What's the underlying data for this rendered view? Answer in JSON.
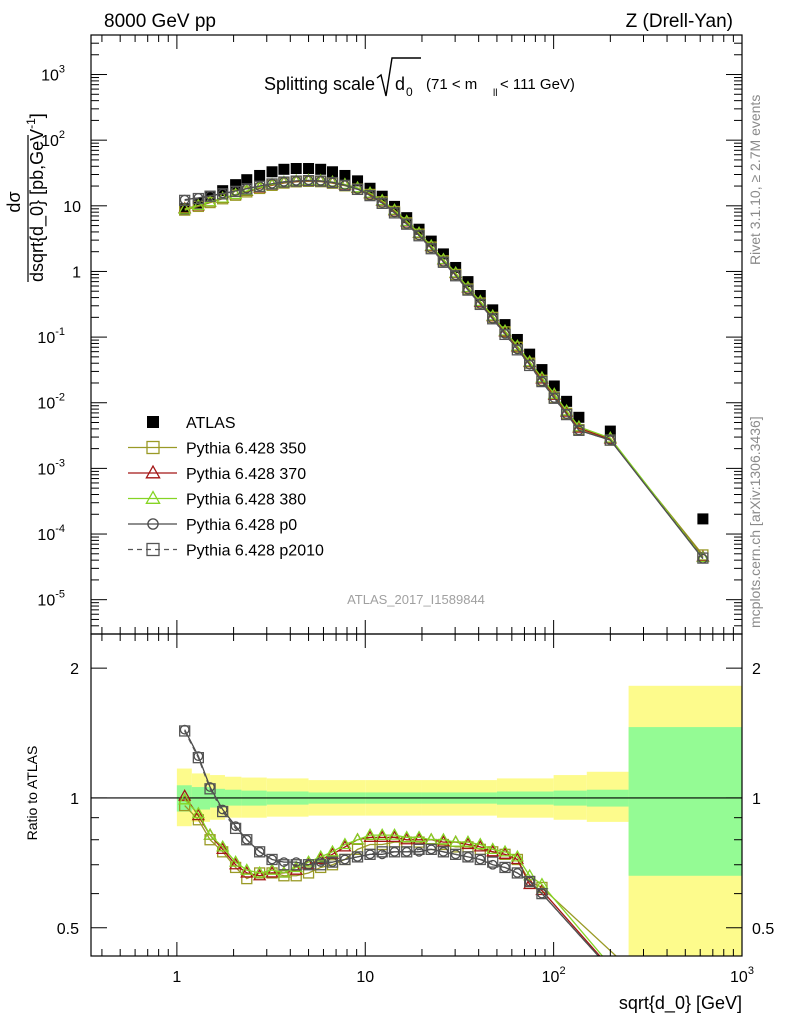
{
  "header": {
    "left": "8000 GeV pp",
    "right": "Z (Drell-Yan)"
  },
  "plot_title": {
    "main": "Splitting scale",
    "symbol": "d",
    "symbol_sub": "0",
    "cut": "(71 < m",
    "cut_sub": "ll",
    "cut_tail": " < 111 GeV)"
  },
  "side_labels": {
    "rivet": "Rivet 3.1.10, ≥ 2.7M events",
    "mcplots": "mcplots.cern.ch [arXiv:1306.3436]"
  },
  "watermark": "ATLAS_2017_I1589844",
  "chart_data": [
    {
      "type": "scatter",
      "panel": "main",
      "xscale": "log",
      "yscale": "log",
      "xlim": [
        0.35,
        1000
      ],
      "ylim": [
        3e-06,
        4000
      ],
      "ylabel": "dσ/dsqrt{d_0} [pb,GeV⁻¹]",
      "ylabel_num": "dσ",
      "ylabel_den": "dsqrt{d_0} [pb,GeV",
      "ylabel_sup": "-1",
      "ylabel_tail": "]",
      "yticks": [
        {
          "v": 1e-05,
          "base": "10",
          "exp": "-5"
        },
        {
          "v": 0.0001,
          "base": "10",
          "exp": "-4"
        },
        {
          "v": 0.001,
          "base": "10",
          "exp": "-3"
        },
        {
          "v": 0.01,
          "base": "10",
          "exp": "-2"
        },
        {
          "v": 0.1,
          "base": "10",
          "exp": "-1"
        },
        {
          "v": 1,
          "base": "1",
          "exp": ""
        },
        {
          "v": 10,
          "base": "10",
          "exp": ""
        },
        {
          "v": 100,
          "base": "10",
          "exp": "2"
        },
        {
          "v": 1000,
          "base": "10",
          "exp": "3"
        }
      ],
      "legend_position": "lower-left",
      "series": [
        {
          "name": "ATLAS",
          "color": "#000000",
          "marker": "filled-square",
          "line": "none",
          "x": [
            1.1,
            1.3,
            1.5,
            1.75,
            2.05,
            2.35,
            2.75,
            3.2,
            3.7,
            4.3,
            5.0,
            5.8,
            6.7,
            7.8,
            9.1,
            10.6,
            12.3,
            14.3,
            16.6,
            19.3,
            22.4,
            26.0,
            30.2,
            35.1,
            40.8,
            47.5,
            55.2,
            64.2,
            74.6,
            86.7,
            100.8,
            117.2,
            136.2,
            200,
            620
          ],
          "y": [
            9,
            11,
            14,
            17,
            21,
            25,
            29,
            33,
            36,
            37,
            37,
            36,
            33,
            29,
            24,
            18.5,
            14,
            9.8,
            6.6,
            4.4,
            2.9,
            1.85,
            1.15,
            0.7,
            0.43,
            0.26,
            0.155,
            0.092,
            0.055,
            0.032,
            0.018,
            0.0105,
            0.006,
            0.0037,
            0.00017
          ]
        },
        {
          "name": "Pythia 6.428 350",
          "color": "#9a9a26",
          "marker": "open-square",
          "line": "solid",
          "x": [
            1.1,
            1.3,
            1.5,
            1.75,
            2.05,
            2.35,
            2.75,
            3.2,
            3.7,
            4.3,
            5.0,
            5.8,
            6.7,
            7.8,
            9.1,
            10.6,
            12.3,
            14.3,
            16.6,
            19.3,
            22.4,
            26.0,
            30.2,
            35.1,
            40.8,
            47.5,
            55.2,
            64.2,
            74.6,
            86.7,
            100.8,
            117.2,
            136.2,
            200,
            620
          ],
          "y": [
            8.6,
            9.8,
            11.2,
            12.8,
            14.5,
            16.3,
            18.4,
            20.5,
            22.2,
            23.2,
            23.6,
            23.3,
            22.1,
            20.2,
            18,
            14.9,
            11.5,
            8.2,
            5.5,
            3.7,
            2.35,
            1.45,
            0.9,
            0.54,
            0.33,
            0.2,
            0.12,
            0.07,
            0.04,
            0.022,
            0.012,
            0.0069,
            0.0039,
            0.0027,
            4.8e-05
          ]
        },
        {
          "name": "Pythia 6.428 370",
          "color": "#a31616",
          "marker": "open-triangle",
          "line": "solid",
          "x": [
            1.1,
            1.3,
            1.5,
            1.75,
            2.05,
            2.35,
            2.75,
            3.2,
            3.7,
            4.3,
            5.0,
            5.8,
            6.7,
            7.8,
            9.1,
            10.6,
            12.3,
            14.3,
            16.6,
            19.3,
            22.4,
            26.0,
            30.2,
            35.1,
            40.8,
            47.5,
            55.2,
            64.2,
            74.6,
            86.7,
            100.8,
            117.2,
            136.2,
            200,
            620
          ],
          "y": [
            9.1,
            10,
            11.4,
            13,
            14.8,
            16.6,
            18.7,
            20.8,
            22.6,
            23.5,
            24,
            23.7,
            22.6,
            20.8,
            18.5,
            15.3,
            11.8,
            8.4,
            5.7,
            3.8,
            2.4,
            1.5,
            0.93,
            0.56,
            0.34,
            0.205,
            0.12,
            0.071,
            0.041,
            0.023,
            0.013,
            0.0072,
            0.0041,
            0.0028,
            4.5e-05
          ]
        },
        {
          "name": "Pythia 6.428 380",
          "color": "#86d424",
          "marker": "open-triangle",
          "line": "solid",
          "x": [
            1.1,
            1.3,
            1.5,
            1.75,
            2.05,
            2.35,
            2.75,
            3.2,
            3.7,
            4.3,
            5.0,
            5.8,
            6.7,
            7.8,
            9.1,
            10.6,
            12.3,
            14.3,
            16.6,
            19.3,
            22.4,
            26.0,
            30.2,
            35.1,
            40.8,
            47.5,
            55.2,
            64.2,
            74.6,
            86.7,
            100.8,
            117.2,
            136.2,
            200,
            620
          ],
          "y": [
            8.9,
            10.1,
            11.5,
            13.1,
            14.9,
            16.8,
            19,
            21.1,
            22.9,
            23.9,
            24.4,
            24.1,
            23,
            21.2,
            18.8,
            15.6,
            12,
            8.6,
            5.8,
            3.85,
            2.45,
            1.52,
            0.95,
            0.57,
            0.35,
            0.21,
            0.124,
            0.073,
            0.042,
            0.024,
            0.0135,
            0.0075,
            0.0043,
            0.0029,
            4.4e-05
          ]
        },
        {
          "name": "Pythia 6.428 p0",
          "color": "#4a4a4a",
          "marker": "open-circle",
          "line": "solid",
          "x": [
            1.1,
            1.3,
            1.5,
            1.75,
            2.05,
            2.35,
            2.75,
            3.2,
            3.7,
            4.3,
            5.0,
            5.8,
            6.7,
            7.8,
            9.1,
            10.6,
            12.3,
            14.3,
            16.6,
            19.3,
            22.4,
            26.0,
            30.2,
            35.1,
            40.8,
            47.5,
            55.2,
            64.2,
            74.6,
            86.7,
            100.8,
            117.2,
            136.2,
            200,
            620
          ],
          "y": [
            12.4,
            13.2,
            14.2,
            15.4,
            16.8,
            18.3,
            20,
            21.7,
            23.2,
            24,
            24.4,
            24,
            22.8,
            20.7,
            18,
            14.4,
            11,
            7.9,
            5.3,
            3.55,
            2.25,
            1.4,
            0.87,
            0.53,
            0.32,
            0.19,
            0.112,
            0.065,
            0.038,
            0.021,
            0.0118,
            0.0067,
            0.0038,
            0.0027,
            4.2e-05
          ]
        },
        {
          "name": "Pythia 6.428 p2010",
          "color": "#555555",
          "marker": "open-square",
          "line": "dashed",
          "x": [
            1.1,
            1.3,
            1.5,
            1.75,
            2.05,
            2.35,
            2.75,
            3.2,
            3.7,
            4.3,
            5.0,
            5.8,
            6.7,
            7.8,
            9.1,
            10.6,
            12.3,
            14.3,
            16.6,
            19.3,
            22.4,
            26.0,
            30.2,
            35.1,
            40.8,
            47.5,
            55.2,
            64.2,
            74.6,
            86.7,
            100.8,
            117.2,
            136.2,
            200,
            620
          ],
          "y": [
            12.1,
            12.9,
            14,
            15.2,
            16.6,
            18.1,
            19.8,
            21.5,
            23,
            23.8,
            24.2,
            23.8,
            22.6,
            20.5,
            17.8,
            14.3,
            10.9,
            7.8,
            5.25,
            3.5,
            2.22,
            1.38,
            0.86,
            0.52,
            0.315,
            0.19,
            0.11,
            0.064,
            0.037,
            0.021,
            0.0117,
            0.0066,
            0.0038,
            0.0027,
            4.3e-05
          ]
        }
      ]
    },
    {
      "type": "line",
      "panel": "ratio",
      "xscale": "log",
      "yscale": "log",
      "xlim": [
        0.35,
        1000
      ],
      "ylim": [
        0.43,
        2.4
      ],
      "xlabel": "sqrt{d_0} [GeV]",
      "ylabel": "Ratio to ATLAS",
      "xticks": [
        {
          "v": 1,
          "base": "1",
          "exp": ""
        },
        {
          "v": 10,
          "base": "10",
          "exp": ""
        },
        {
          "v": 100,
          "base": "10",
          "exp": "2"
        },
        {
          "v": 1000,
          "base": "10",
          "exp": "3"
        }
      ],
      "yticks": [
        {
          "v": 0.5,
          "label": "0.5"
        },
        {
          "v": 1,
          "label": "1"
        },
        {
          "v": 2,
          "label": "2"
        }
      ],
      "band_inner": {
        "color": "#94fb94",
        "edges": [
          1,
          1.2,
          1.5,
          1.8,
          2.2,
          3,
          5,
          10,
          20,
          50,
          100,
          150,
          250,
          1000
        ],
        "lo": [
          0.93,
          0.94,
          0.95,
          0.96,
          0.96,
          0.965,
          0.97,
          0.97,
          0.97,
          0.965,
          0.96,
          0.955,
          0.66
        ],
        "hi": [
          1.07,
          1.06,
          1.05,
          1.045,
          1.04,
          1.035,
          1.03,
          1.03,
          1.03,
          1.035,
          1.04,
          1.045,
          1.46
        ]
      },
      "band_outer": {
        "color": "#fdfb8c",
        "edges": [
          1,
          1.2,
          1.5,
          1.8,
          2.2,
          3,
          5,
          10,
          20,
          50,
          100,
          150,
          250,
          1000
        ],
        "lo": [
          0.86,
          0.88,
          0.89,
          0.9,
          0.9,
          0.905,
          0.91,
          0.91,
          0.91,
          0.9,
          0.89,
          0.88,
          0.1
        ],
        "hi": [
          1.17,
          1.14,
          1.13,
          1.12,
          1.115,
          1.11,
          1.1,
          1.1,
          1.1,
          1.11,
          1.13,
          1.15,
          1.82
        ]
      },
      "series": [
        {
          "name": "Pythia 6.428 350",
          "color": "#9a9a26",
          "marker": "open-square",
          "line": "solid",
          "x": [
            1.1,
            1.3,
            1.5,
            1.75,
            2.05,
            2.35,
            2.75,
            3.2,
            3.7,
            4.3,
            5.0,
            5.8,
            6.7,
            7.8,
            9.1,
            10.6,
            12.3,
            14.3,
            16.6,
            19.3,
            22.4,
            26.0,
            30.2,
            35.1,
            40.8,
            47.5,
            55.2,
            64.2,
            74.6,
            86.7,
            620
          ],
          "y": [
            0.96,
            0.89,
            0.8,
            0.75,
            0.69,
            0.65,
            0.67,
            0.67,
            0.66,
            0.66,
            0.67,
            0.69,
            0.7,
            0.72,
            0.76,
            0.78,
            0.78,
            0.79,
            0.79,
            0.79,
            0.78,
            0.78,
            0.77,
            0.77,
            0.76,
            0.75,
            0.74,
            0.72,
            0.64,
            0.62,
            0.28
          ]
        },
        {
          "name": "Pythia 6.428 370",
          "color": "#a31616",
          "marker": "open-triangle",
          "line": "solid",
          "x": [
            1.1,
            1.3,
            1.5,
            1.75,
            2.05,
            2.35,
            2.75,
            3.2,
            3.7,
            4.3,
            5.0,
            5.8,
            6.7,
            7.8,
            9.1,
            10.6,
            12.3,
            14.3,
            16.6,
            19.3,
            22.4,
            26.0,
            30.2,
            35.1,
            40.8,
            47.5,
            55.2,
            64.2,
            74.6,
            86.7
          ],
          "y": [
            1.01,
            0.91,
            0.82,
            0.76,
            0.7,
            0.67,
            0.66,
            0.67,
            0.67,
            0.68,
            0.7,
            0.72,
            0.74,
            0.77,
            0.8,
            0.81,
            0.81,
            0.81,
            0.8,
            0.8,
            0.8,
            0.79,
            0.79,
            0.78,
            0.77,
            0.75,
            0.74,
            0.72,
            0.63,
            0.61
          ]
        },
        {
          "name": "Pythia 6.428 380",
          "color": "#86d424",
          "marker": "open-triangle",
          "line": "solid",
          "x": [
            1.1,
            1.3,
            1.5,
            1.75,
            2.05,
            2.35,
            2.75,
            3.2,
            3.7,
            4.3,
            5.0,
            5.8,
            6.7,
            7.8,
            9.1,
            10.6,
            12.3,
            14.3,
            16.6,
            19.3,
            22.4,
            26.0,
            30.2,
            35.1,
            40.8,
            47.5,
            55.2,
            64.2,
            74.6,
            86.7
          ],
          "y": [
            0.99,
            0.92,
            0.82,
            0.77,
            0.71,
            0.68,
            0.67,
            0.68,
            0.67,
            0.69,
            0.71,
            0.73,
            0.75,
            0.78,
            0.8,
            0.82,
            0.82,
            0.82,
            0.81,
            0.81,
            0.8,
            0.8,
            0.79,
            0.79,
            0.78,
            0.76,
            0.75,
            0.73,
            0.66,
            0.63
          ]
        },
        {
          "name": "Pythia 6.428 p0",
          "color": "#4a4a4a",
          "marker": "open-circle",
          "line": "solid",
          "x": [
            1.1,
            1.3,
            1.5,
            1.75,
            2.05,
            2.35,
            2.75,
            3.2,
            3.7,
            4.3,
            5.0,
            5.8,
            6.7,
            7.8,
            9.1,
            10.6,
            12.3,
            14.3,
            16.6,
            19.3,
            22.4,
            26.0,
            30.2,
            35.1,
            40.8,
            47.5,
            55.2,
            64.2,
            74.6,
            86.7
          ],
          "y": [
            1.44,
            1.25,
            1.06,
            0.94,
            0.86,
            0.8,
            0.75,
            0.72,
            0.71,
            0.71,
            0.7,
            0.71,
            0.71,
            0.72,
            0.73,
            0.74,
            0.74,
            0.75,
            0.75,
            0.75,
            0.76,
            0.75,
            0.74,
            0.73,
            0.72,
            0.7,
            0.69,
            0.67,
            0.64,
            0.6
          ]
        },
        {
          "name": "Pythia 6.428 p2010",
          "color": "#555555",
          "marker": "open-square",
          "line": "dashed",
          "x": [
            1.1,
            1.3,
            1.5,
            1.75,
            2.05,
            2.35,
            2.75,
            3.2,
            3.7,
            4.3,
            5.0,
            5.8,
            6.7,
            7.8,
            9.1,
            10.6,
            12.3,
            14.3,
            16.6,
            19.3,
            22.4,
            26.0,
            30.2,
            35.1,
            40.8,
            47.5,
            55.2,
            64.2,
            74.6,
            86.7
          ],
          "y": [
            1.43,
            1.24,
            1.05,
            0.93,
            0.85,
            0.8,
            0.75,
            0.72,
            0.7,
            0.7,
            0.7,
            0.7,
            0.71,
            0.72,
            0.73,
            0.74,
            0.75,
            0.75,
            0.75,
            0.76,
            0.76,
            0.75,
            0.74,
            0.73,
            0.72,
            0.71,
            0.69,
            0.67,
            0.64,
            0.6
          ]
        }
      ]
    }
  ]
}
